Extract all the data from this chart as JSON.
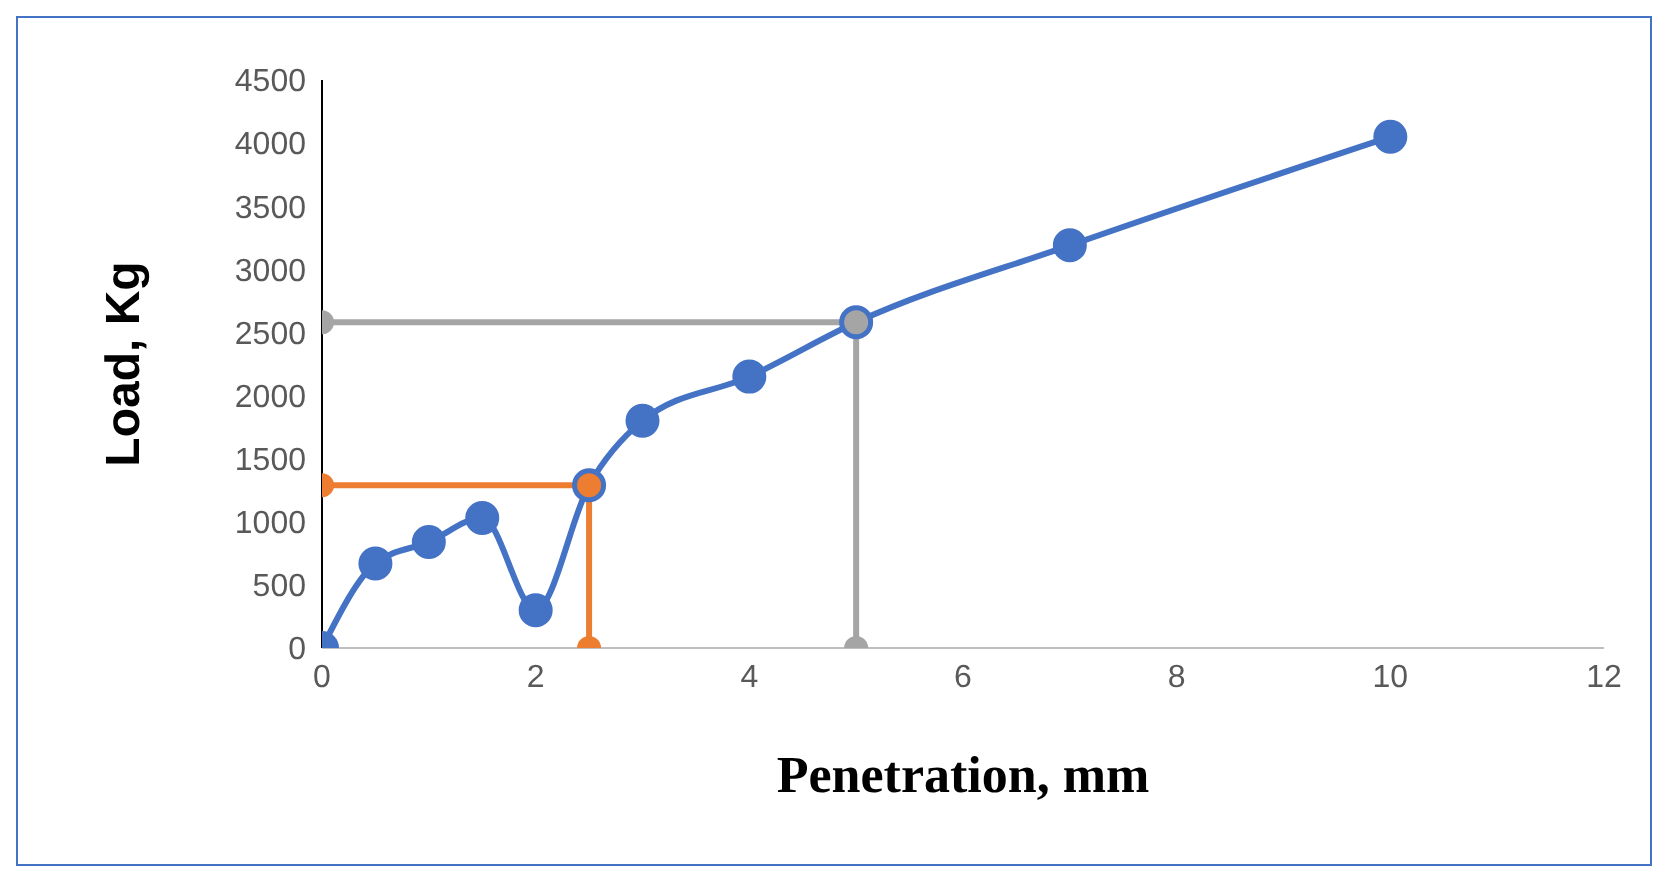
{
  "chart_data": {
    "type": "line",
    "xlabel": "Penetration, mm",
    "ylabel": "Load, Kg",
    "xlim": [
      0,
      12
    ],
    "xticks": [
      0,
      2,
      4,
      6,
      8,
      10,
      12
    ],
    "ylim": [
      0,
      4500
    ],
    "yticks": [
      0,
      500,
      1000,
      1500,
      2000,
      2500,
      3000,
      3500,
      4000,
      4500
    ],
    "grid": false,
    "marker": "circle",
    "line_style": "solid",
    "series": [
      {
        "color": "#4472c4",
        "x": [
          0,
          0.5,
          1,
          1.5,
          2,
          2.5,
          3,
          4,
          5,
          7,
          10
        ],
        "values": [
          0,
          670,
          840,
          1030,
          300,
          1290,
          1800,
          2150,
          2580,
          3190,
          4050
        ]
      },
      {
        "color": "#ed7d31",
        "x": [
          0,
          2.5,
          2.5
        ],
        "values": [
          1290,
          1290,
          0
        ]
      },
      {
        "color": "#a5a5a5",
        "x": [
          0,
          5,
          5
        ],
        "values": [
          2580,
          2580,
          0
        ]
      }
    ]
  }
}
